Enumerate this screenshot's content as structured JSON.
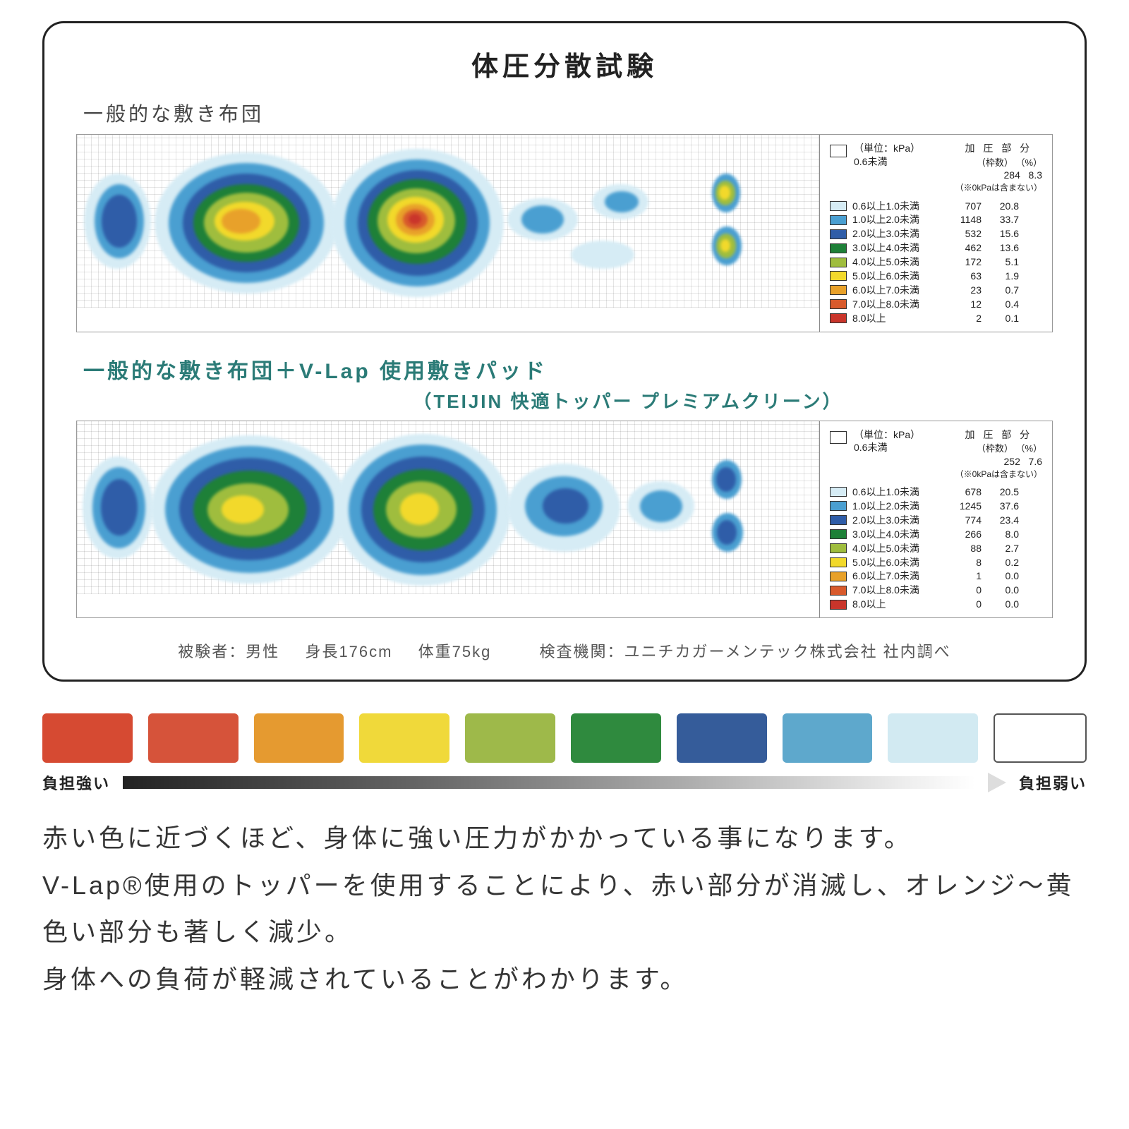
{
  "panel": {
    "title": "体圧分散試験",
    "map1_title": "一般的な敷き布団",
    "map2_title": "一般的な敷き布団＋V-Lap 使用敷きパッド",
    "map2_paren": "（TEIJIN 快適トッパー プレミアムクリーン）",
    "legend_unit": "（単位：kPa）",
    "legend_zero": "0.6未満",
    "legend_section_title": "加 圧 部 分",
    "legend_cols": "（枠数） （%）",
    "legend_note": "（※0kPaは含まない）",
    "legend1_zero_count": "284",
    "legend1_zero_pct": "8.3",
    "legend2_zero_count": "252",
    "legend2_zero_pct": "7.6",
    "legend_scale": [
      {
        "label": "0.6以上1.0未満",
        "color": "#d6ecf5"
      },
      {
        "label": "1.0以上2.0未満",
        "color": "#4a9fd1"
      },
      {
        "label": "2.0以上3.0未満",
        "color": "#2f5da8"
      },
      {
        "label": "3.0以上4.0未満",
        "color": "#1e8038"
      },
      {
        "label": "4.0以上5.0未満",
        "color": "#9fbd3e"
      },
      {
        "label": "5.0以上6.0未満",
        "color": "#f2d92b"
      },
      {
        "label": "6.0以上7.0未満",
        "color": "#e8a12a"
      },
      {
        "label": "7.0以上8.0未満",
        "color": "#d85a2c"
      },
      {
        "label": "8.0以上",
        "color": "#c9352b"
      }
    ],
    "legend1_vals": [
      {
        "count": "707",
        "pct": "20.8"
      },
      {
        "count": "1148",
        "pct": "33.7"
      },
      {
        "count": "532",
        "pct": "15.6"
      },
      {
        "count": "462",
        "pct": "13.6"
      },
      {
        "count": "172",
        "pct": "5.1"
      },
      {
        "count": "63",
        "pct": "1.9"
      },
      {
        "count": "23",
        "pct": "0.7"
      },
      {
        "count": "12",
        "pct": "0.4"
      },
      {
        "count": "2",
        "pct": "0.1"
      }
    ],
    "legend2_vals": [
      {
        "count": "678",
        "pct": "20.5"
      },
      {
        "count": "1245",
        "pct": "37.6"
      },
      {
        "count": "774",
        "pct": "23.4"
      },
      {
        "count": "266",
        "pct": "8.0"
      },
      {
        "count": "88",
        "pct": "2.7"
      },
      {
        "count": "8",
        "pct": "0.2"
      },
      {
        "count": "1",
        "pct": "0.0"
      },
      {
        "count": "0",
        "pct": "0.0"
      },
      {
        "count": "0",
        "pct": "0.0"
      }
    ],
    "info_subject": "被験者：男性",
    "info_height": "身長176cm",
    "info_weight": "体重75kg",
    "info_inst": "検査機関：ユニチカガーメンテック株式会社 社内調べ",
    "heatmap_colors": {
      "c0": "#d6ecf5",
      "c1": "#4a9fd1",
      "c2": "#2f5da8",
      "c3": "#1e8038",
      "c4": "#9fbd3e",
      "c5": "#f2d92b",
      "c6": "#e8a12a",
      "c7": "#d85a2c",
      "c8": "#c9352b"
    }
  },
  "scale": {
    "colors": [
      "#d64a32",
      "#d6533a",
      "#e59a30",
      "#f0d93a",
      "#9eb94a",
      "#2f8a3e",
      "#355c9a",
      "#5ea8cc",
      "#d2eaf2"
    ],
    "outline_color": "#555555",
    "label_left": "負担強い",
    "label_right": "負担弱い"
  },
  "body": {
    "p1": "赤い色に近づくほど、身体に強い圧力がかかっている事になります。",
    "p2": "V-Lap®使用のトッパーを使用することにより、赤い部分が消滅し、オレンジ〜黄色い部分も著しく減少。",
    "p3": "身体への負荷が軽減されていることがわかります。"
  }
}
